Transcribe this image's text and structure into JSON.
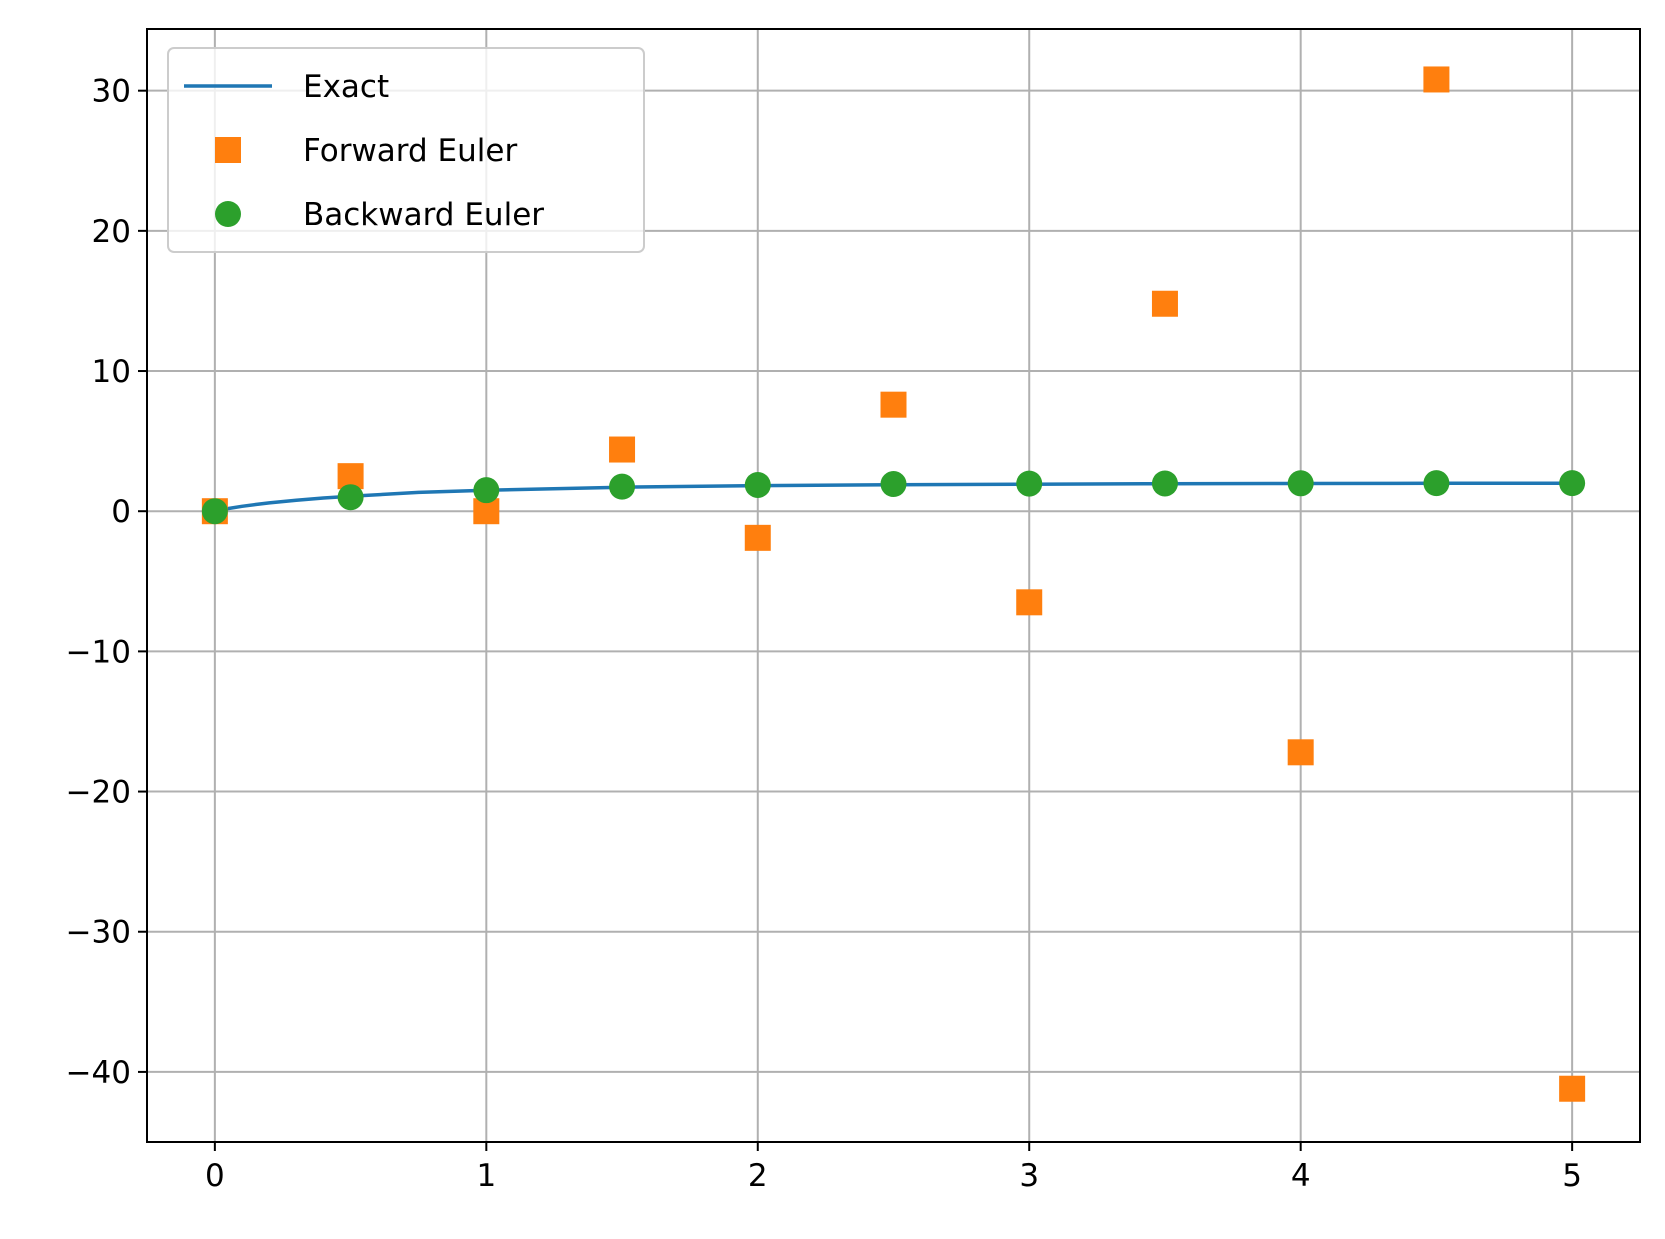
{
  "chart_data": {
    "type": "line",
    "title": "",
    "xlabel": "",
    "ylabel": "",
    "xlim": [
      -0.25,
      5.25
    ],
    "ylim": [
      -45,
      34.4
    ],
    "xticks": [
      0,
      1,
      2,
      3,
      4,
      5
    ],
    "xtick_labels": [
      "0",
      "1",
      "2",
      "3",
      "4",
      "5"
    ],
    "yticks": [
      30,
      20,
      10,
      0,
      -10,
      -20,
      -30,
      -40
    ],
    "ytick_labels": [
      "30",
      "20",
      "10",
      "0",
      "−10",
      "−20",
      "−30",
      "−40"
    ],
    "grid": true,
    "legend_position": "top-left",
    "series": [
      {
        "name": "Exact",
        "style": "line",
        "color": "#1f77b4",
        "x": [
          0,
          0.05,
          0.1,
          0.15,
          0.2,
          0.3,
          0.4,
          0.5,
          0.75,
          1,
          1.5,
          2,
          2.5,
          3,
          3.5,
          4,
          4.5,
          5
        ],
        "y": [
          0,
          0.19,
          0.35,
          0.48,
          0.59,
          0.78,
          0.94,
          1.06,
          1.34,
          1.5,
          1.71,
          1.83,
          1.89,
          1.93,
          1.96,
          1.98,
          1.99,
          1.99
        ]
      },
      {
        "name": "Forward Euler",
        "style": "square",
        "color": "#ff7f0e",
        "x": [
          0,
          0.5,
          1,
          1.5,
          2,
          2.5,
          3,
          3.5,
          4,
          4.5,
          5
        ],
        "y": [
          0,
          2.5,
          0,
          4.4,
          -1.9,
          7.6,
          -6.5,
          14.8,
          -17.2,
          30.8,
          -41.2
        ]
      },
      {
        "name": "Backward Euler",
        "style": "circle",
        "color": "#2ca02c",
        "x": [
          0,
          0.5,
          1,
          1.5,
          2,
          2.5,
          3,
          3.5,
          4,
          4.5,
          5
        ],
        "y": [
          0,
          1.0,
          1.5,
          1.75,
          1.87,
          1.94,
          1.97,
          1.98,
          1.99,
          2.0,
          2.0
        ]
      }
    ]
  }
}
